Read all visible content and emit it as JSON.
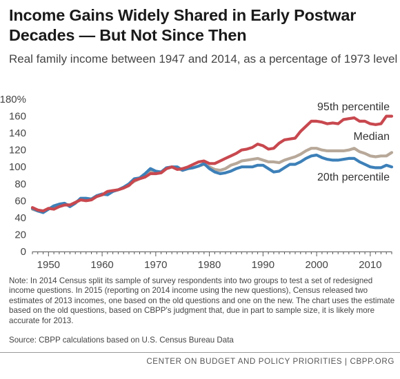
{
  "header": {
    "title": "Income Gains Widely Shared in Early Postwar Decades — But Not Since Then",
    "subtitle": "Real family income between 1947 and 2014, as a percentage of 1973 level"
  },
  "footer": {
    "note": "Note: In 2014 Census split its sample of survey respondents into two groups to test a set of redesigned income questions.  In 2015 (reporting on 2014 income using the new questions), Census released two estimates of 2013 incomes, one based on the old questions and one on the new.  The chart uses the estimate based on the old questions, based on CBPP's judgment that, due in part to sample size, it is likely more accurate for 2013.",
    "source": "Source: CBPP calculations based on U.S. Census Bureau Data",
    "org": "CENTER ON BUDGET AND POLICY PRIORITIES | CBPP.ORG"
  },
  "chart_data": {
    "type": "line",
    "xlim": [
      1947,
      2014
    ],
    "ylim": [
      0,
      180
    ],
    "y_ticks": [
      0,
      20,
      40,
      60,
      80,
      100,
      120,
      140,
      160,
      180
    ],
    "y_tick_labels": [
      "0",
      "20",
      "40",
      "60",
      "80",
      "100",
      "120",
      "140",
      "160",
      "180%"
    ],
    "x_ticks": [
      1950,
      1960,
      1970,
      1980,
      1990,
      2000,
      2010
    ],
    "x_tick_labels": [
      "1950",
      "1960",
      "1970",
      "1980",
      "1990",
      "2000",
      "2010"
    ],
    "grid": false,
    "x": [
      1947,
      1948,
      1949,
      1950,
      1951,
      1952,
      1953,
      1954,
      1955,
      1956,
      1957,
      1958,
      1959,
      1960,
      1961,
      1962,
      1963,
      1964,
      1965,
      1966,
      1967,
      1968,
      1969,
      1970,
      1971,
      1972,
      1973,
      1974,
      1975,
      1976,
      1977,
      1978,
      1979,
      1980,
      1981,
      1982,
      1983,
      1984,
      1985,
      1986,
      1987,
      1988,
      1989,
      1990,
      1991,
      1992,
      1993,
      1994,
      1995,
      1996,
      1997,
      1998,
      1999,
      2000,
      2001,
      2002,
      2003,
      2004,
      2005,
      2006,
      2007,
      2008,
      2009,
      2010,
      2011,
      2012,
      2013,
      2014
    ],
    "series": [
      {
        "name": "95th percentile",
        "color": "#c8484f",
        "values": [
          52,
          49,
          48,
          51,
          50,
          53,
          55,
          55,
          58,
          61,
          60,
          61,
          65,
          67,
          71,
          72,
          73,
          75,
          78,
          84,
          86,
          88,
          92,
          92,
          93,
          98,
          100,
          97,
          98,
          100,
          103,
          106,
          107,
          104,
          104,
          107,
          110,
          113,
          116,
          120,
          121,
          123,
          127,
          125,
          121,
          122,
          128,
          132,
          133,
          134,
          142,
          148,
          154,
          154,
          153,
          151,
          152,
          151,
          156,
          157,
          158,
          154,
          154,
          151,
          150,
          151,
          160,
          160
        ]
      },
      {
        "name": "Median",
        "color": "#b7a899",
        "values": [
          50,
          48,
          47,
          51,
          52,
          54,
          56,
          55,
          58,
          62,
          62,
          62,
          66,
          67,
          68,
          71,
          73,
          75,
          79,
          83,
          86,
          90,
          95,
          93,
          93,
          98,
          100,
          98,
          96,
          98,
          99,
          101,
          103,
          100,
          97,
          96,
          98,
          102,
          104,
          107,
          108,
          109,
          110,
          108,
          106,
          106,
          105,
          108,
          110,
          112,
          115,
          119,
          122,
          122,
          120,
          119,
          119,
          119,
          119,
          120,
          122,
          118,
          116,
          113,
          112,
          113,
          113,
          117
        ]
      },
      {
        "name": "20th percentile",
        "color": "#3d80b8",
        "values": [
          51,
          48,
          46,
          50,
          54,
          56,
          57,
          53,
          57,
          63,
          63,
          62,
          66,
          68,
          67,
          71,
          73,
          76,
          80,
          86,
          87,
          92,
          98,
          95,
          94,
          99,
          100,
          100,
          96,
          98,
          99,
          101,
          104,
          98,
          94,
          92,
          93,
          95,
          98,
          100,
          100,
          100,
          102,
          102,
          98,
          94,
          95,
          99,
          103,
          103,
          106,
          110,
          113,
          114,
          111,
          109,
          108,
          108,
          109,
          110,
          110,
          106,
          103,
          100,
          99,
          99,
          102,
          100
        ]
      }
    ]
  }
}
